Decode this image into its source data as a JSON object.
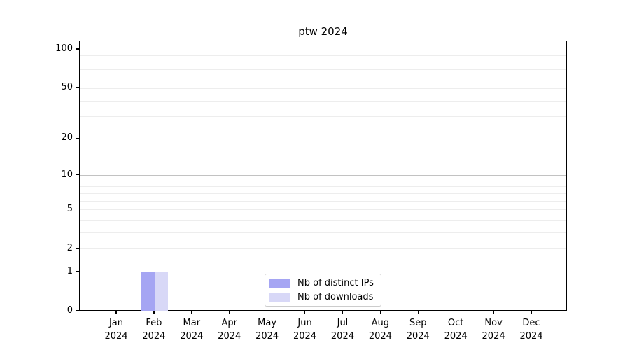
{
  "chart_data": {
    "type": "bar",
    "title": "ptw 2024",
    "x_tick_labels": [
      [
        "Jan",
        "2024"
      ],
      [
        "Feb",
        "2024"
      ],
      [
        "Mar",
        "2024"
      ],
      [
        "Apr",
        "2024"
      ],
      [
        "May",
        "2024"
      ],
      [
        "Jun",
        "2024"
      ],
      [
        "Jul",
        "2024"
      ],
      [
        "Aug",
        "2024"
      ],
      [
        "Sep",
        "2024"
      ],
      [
        "Oct",
        "2024"
      ],
      [
        "Nov",
        "2024"
      ],
      [
        "Dec",
        "2024"
      ]
    ],
    "series": [
      {
        "name": "Nb of distinct IPs",
        "color": "#a5a5f3",
        "values": [
          0,
          1,
          0,
          0,
          0,
          0,
          0,
          0,
          0,
          0,
          0,
          0
        ]
      },
      {
        "name": "Nb of downloads",
        "color": "#d8d8f7",
        "values": [
          0,
          1,
          0,
          0,
          0,
          0,
          0,
          0,
          0,
          0,
          0,
          0
        ]
      }
    ],
    "y_axis": {
      "scale": "log1p",
      "labeled_ticks": [
        0,
        1,
        2,
        5,
        10,
        20,
        50,
        100
      ],
      "major_gridlines": [
        1,
        10,
        100
      ],
      "minor_gridlines": [
        2,
        3,
        4,
        5,
        6,
        7,
        8,
        9,
        20,
        30,
        40,
        50,
        60,
        70,
        80,
        90
      ],
      "ylim": [
        0,
        116
      ]
    },
    "legend": {
      "position": "lower center"
    },
    "colors": {
      "bar_distinct_ips": "#a5a5f3",
      "bar_downloads": "#d8d8f7",
      "major_grid": "#c2c2c2",
      "minor_grid": "#ededed",
      "spine": "#000000",
      "background": "#ffffff"
    }
  }
}
